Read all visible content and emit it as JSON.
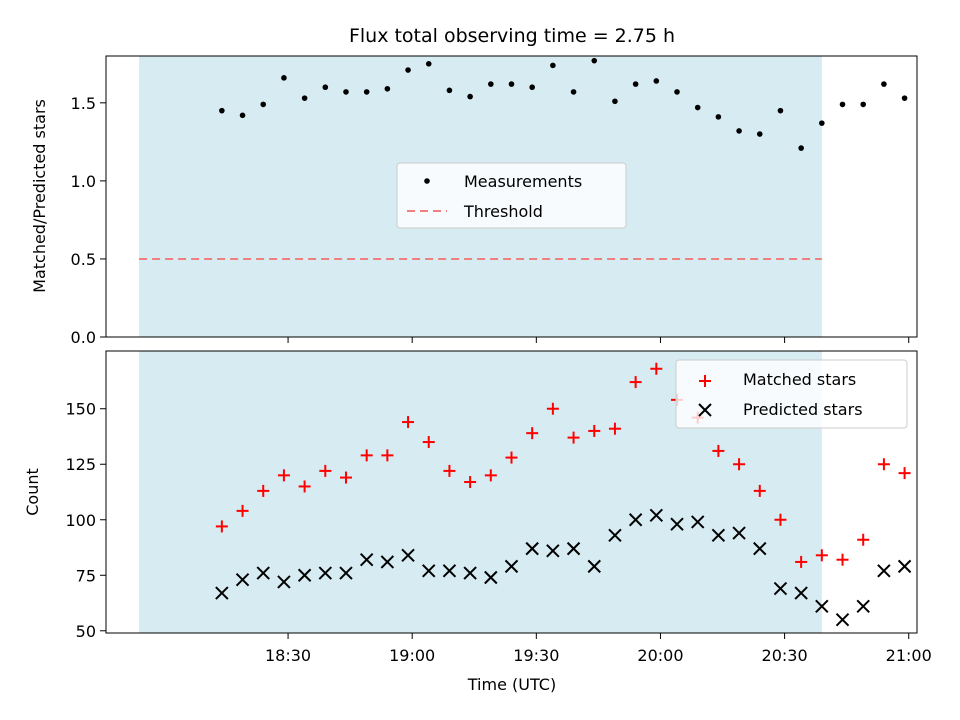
{
  "chart_data": {
    "title": "Flux total observing time = 2.75 h",
    "xlabel": "Time (UTC)",
    "x_tick_labels": [
      "18:30",
      "19:00",
      "19:30",
      "20:00",
      "20:30",
      "21:00"
    ],
    "x_tick_minutes": [
      1110,
      1140,
      1170,
      1200,
      1230,
      1260
    ],
    "x_range_minutes": [
      1066,
      1262
    ],
    "observing_window_minutes": [
      1074,
      1239
    ],
    "colors": {
      "window": "#add8e6",
      "threshold": "#f08080",
      "matched": "#ff0000",
      "predicted": "#000000",
      "measurements": "#000000"
    },
    "x_times": [
      "18:14",
      "18:19",
      "18:24",
      "18:29",
      "18:34",
      "18:39",
      "18:44",
      "18:49",
      "18:54",
      "18:59",
      "19:04",
      "19:09",
      "19:14",
      "19:19",
      "19:24",
      "19:29",
      "19:34",
      "19:39",
      "19:44",
      "19:49",
      "19:54",
      "19:59",
      "20:04",
      "20:09",
      "20:14",
      "20:19",
      "20:24",
      "20:29",
      "20:34",
      "20:39",
      "20:44",
      "20:49",
      "20:54",
      "20:59"
    ],
    "panels": [
      {
        "type": "scatter",
        "ylabel": "Matched/Predicted stars",
        "ylim": [
          0,
          1.8
        ],
        "y_ticks": [
          0.0,
          0.5,
          1.0,
          1.5
        ],
        "y_tick_labels": [
          "0.0",
          "0.5",
          "1.0",
          "1.5"
        ],
        "legend_position": "center",
        "series": [
          {
            "name": "Measurements",
            "marker": "dot",
            "values": [
              1.45,
              1.42,
              1.49,
              1.66,
              1.53,
              1.6,
              1.57,
              1.57,
              1.59,
              1.71,
              1.75,
              1.58,
              1.54,
              1.62,
              1.62,
              1.6,
              1.74,
              1.57,
              1.77,
              1.51,
              1.62,
              1.64,
              1.57,
              1.47,
              1.41,
              1.32,
              1.3,
              1.45,
              1.21,
              1.37,
              1.49,
              1.49,
              1.62,
              1.53
            ]
          },
          {
            "name": "Threshold",
            "marker": "dashed-line",
            "value": 0.5
          }
        ]
      },
      {
        "type": "scatter",
        "ylabel": "Count",
        "ylim": [
          49,
          176
        ],
        "y_ticks": [
          50,
          75,
          100,
          125,
          150
        ],
        "y_tick_labels": [
          "50",
          "75",
          "100",
          "125",
          "150"
        ],
        "legend_position": "top-right",
        "series": [
          {
            "name": "Matched stars",
            "marker": "plus",
            "values": [
              97,
              104,
              113,
              120,
              115,
              122,
              119,
              129,
              129,
              144,
              135,
              122,
              117,
              120,
              128,
              139,
              150,
              137,
              140,
              141,
              162,
              168,
              154,
              146,
              131,
              125,
              113,
              100,
              81,
              84,
              82,
              91,
              125,
              121
            ]
          },
          {
            "name": "Predicted stars",
            "marker": "x",
            "values": [
              67,
              73,
              76,
              72,
              75,
              76,
              76,
              82,
              81,
              84,
              77,
              77,
              76,
              74,
              79,
              87,
              86,
              87,
              79,
              93,
              100,
              102,
              98,
              99,
              93,
              94,
              87,
              69,
              67,
              61,
              55,
              61,
              77,
              79
            ]
          }
        ]
      }
    ]
  }
}
